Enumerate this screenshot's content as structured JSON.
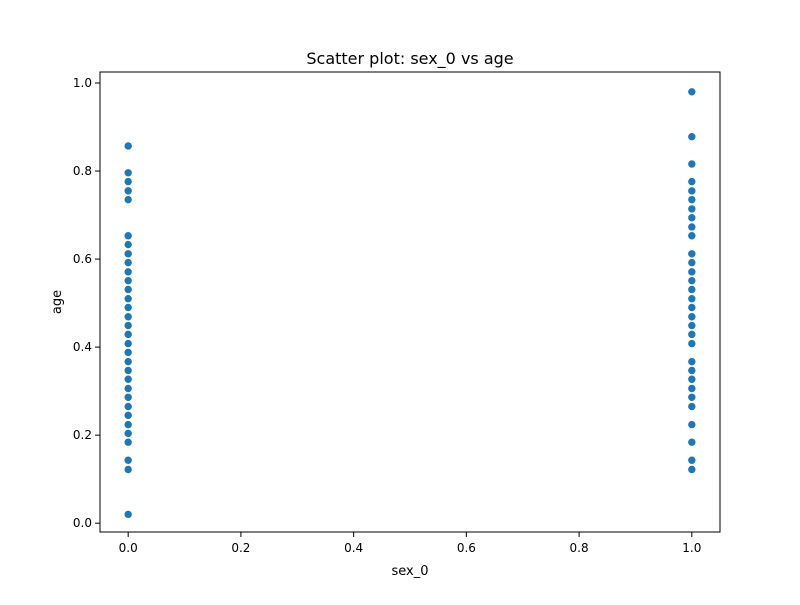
{
  "chart_data": {
    "type": "scatter",
    "title": "Scatter plot: sex_0 vs age",
    "xlabel": "sex_0",
    "ylabel": "age",
    "xlim": [
      -0.05,
      1.05
    ],
    "ylim": [
      -0.02,
      1.025
    ],
    "xticks": [
      "0.0",
      "0.2",
      "0.4",
      "0.6",
      "0.8",
      "1.0"
    ],
    "yticks": [
      "0.0",
      "0.2",
      "0.4",
      "0.6",
      "0.8",
      "1.0"
    ],
    "grid": false,
    "marker_color": "#1f77b4",
    "series": [
      {
        "points": [
          [
            0,
            0.857
          ],
          [
            0,
            0.796
          ],
          [
            0,
            0.776
          ],
          [
            0,
            0.755
          ],
          [
            0,
            0.735
          ],
          [
            0,
            0.653
          ],
          [
            0,
            0.633
          ],
          [
            0,
            0.612
          ],
          [
            0,
            0.592
          ],
          [
            0,
            0.571
          ],
          [
            0,
            0.551
          ],
          [
            0,
            0.531
          ],
          [
            0,
            0.51
          ],
          [
            0,
            0.49
          ],
          [
            0,
            0.469
          ],
          [
            0,
            0.449
          ],
          [
            0,
            0.429
          ],
          [
            0,
            0.408
          ],
          [
            0,
            0.388
          ],
          [
            0,
            0.367
          ],
          [
            0,
            0.347
          ],
          [
            0,
            0.327
          ],
          [
            0,
            0.306
          ],
          [
            0,
            0.286
          ],
          [
            0,
            0.265
          ],
          [
            0,
            0.245
          ],
          [
            0,
            0.224
          ],
          [
            0,
            0.204
          ],
          [
            0,
            0.184
          ],
          [
            0,
            0.143
          ],
          [
            0,
            0.122
          ],
          [
            0,
            0.02
          ],
          [
            1,
            0.98
          ],
          [
            1,
            0.878
          ],
          [
            1,
            0.816
          ],
          [
            1,
            0.776
          ],
          [
            1,
            0.755
          ],
          [
            1,
            0.735
          ],
          [
            1,
            0.714
          ],
          [
            1,
            0.694
          ],
          [
            1,
            0.673
          ],
          [
            1,
            0.653
          ],
          [
            1,
            0.612
          ],
          [
            1,
            0.592
          ],
          [
            1,
            0.571
          ],
          [
            1,
            0.551
          ],
          [
            1,
            0.531
          ],
          [
            1,
            0.51
          ],
          [
            1,
            0.49
          ],
          [
            1,
            0.469
          ],
          [
            1,
            0.449
          ],
          [
            1,
            0.429
          ],
          [
            1,
            0.408
          ],
          [
            1,
            0.367
          ],
          [
            1,
            0.347
          ],
          [
            1,
            0.327
          ],
          [
            1,
            0.306
          ],
          [
            1,
            0.286
          ],
          [
            1,
            0.265
          ],
          [
            1,
            0.224
          ],
          [
            1,
            0.184
          ],
          [
            1,
            0.143
          ],
          [
            1,
            0.122
          ]
        ]
      }
    ]
  }
}
